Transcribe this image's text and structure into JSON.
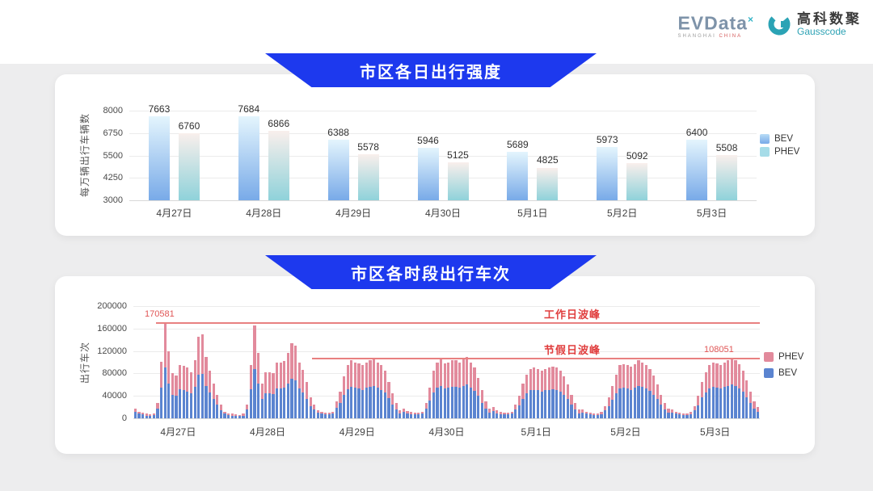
{
  "logo": {
    "evdata_text": "EVData",
    "evdata_sup": "×",
    "evdata_sub_left": "SHANGHAI",
    "evdata_sub_right": "CHINA",
    "gausscode_cn": "高科数聚",
    "gausscode_en": "Gausscode",
    "teal": "#2ba3b5"
  },
  "banners": [
    {
      "title": "市区各日出行强度"
    },
    {
      "title": "市区各时段出行车次"
    }
  ],
  "chart_data": [
    {
      "type": "bar",
      "title": "市区各日出行强度",
      "ylabel": "每万辆出行车辆数",
      "ylim": [
        3000,
        8000
      ],
      "yticks": [
        3000,
        4250,
        5500,
        6750,
        8000
      ],
      "grid": true,
      "legend_position": "right",
      "categories": [
        "4月27日",
        "4月28日",
        "4月29日",
        "4月30日",
        "5月1日",
        "5月2日",
        "5月3日"
      ],
      "series": [
        {
          "name": "BEV",
          "values": [
            7663,
            7684,
            6388,
            5946,
            5689,
            5973,
            6400
          ],
          "color_top": "#e4f5fd",
          "color_bottom": "#78aae8"
        },
        {
          "name": "PHEV",
          "values": [
            6760,
            6866,
            5578,
            5125,
            4825,
            5092,
            5508
          ],
          "color_top": "#f9efec",
          "color_bottom": "#8fd2da"
        }
      ],
      "legend": [
        {
          "label": "BEV",
          "swatch": "#85b8ec"
        },
        {
          "label": "PHEV",
          "swatch": "#a6dce8"
        }
      ]
    },
    {
      "type": "stacked-bar",
      "title": "市区各时段出行车次",
      "ylabel": "出行车次",
      "ylim": [
        0,
        200000
      ],
      "yticks": [
        0,
        40000,
        80000,
        120000,
        160000,
        200000
      ],
      "grid": true,
      "legend_position": "right",
      "bev_color": "#5b84d0",
      "phev_color": "#e28a9c",
      "annotations": {
        "weekday_peak": {
          "label": "工作日波峰",
          "value": 170581,
          "value_label": "170581"
        },
        "holiday_peak": {
          "label": "节假日波峰",
          "value": 108051,
          "value_label": "108051"
        }
      },
      "legend": [
        {
          "label": "PHEV",
          "swatch": "#e28a9c"
        },
        {
          "label": "BEV",
          "swatch": "#5b84d0"
        }
      ],
      "days": [
        {
          "date": "4月27日",
          "bev": [
            11000,
            8000,
            7000,
            5000,
            5000,
            6000,
            17000,
            55000,
            91000,
            62000,
            42000,
            41000,
            52000,
            51000,
            48000,
            44000,
            56000,
            78000,
            79000,
            58000,
            46000,
            34000,
            24000,
            15000
          ],
          "phev": [
            6000,
            4000,
            3000,
            3000,
            2000,
            3000,
            10000,
            46000,
            79581,
            57000,
            38000,
            35000,
            43000,
            43000,
            42000,
            38000,
            48000,
            67000,
            70000,
            51000,
            39000,
            28000,
            18000,
            10000
          ]
        },
        {
          "date": "4月28日",
          "bev": [
            8000,
            6000,
            5000,
            5000,
            4000,
            5000,
            16000,
            52000,
            88000,
            62000,
            34000,
            44000,
            44000,
            43000,
            53000,
            53000,
            54000,
            62000,
            71000,
            68000,
            53000,
            46000,
            35000,
            21000
          ],
          "phev": [
            4000,
            3000,
            3000,
            2000,
            2000,
            3000,
            9000,
            43000,
            77000,
            55000,
            28000,
            38000,
            38000,
            37000,
            47000,
            47000,
            48000,
            55000,
            63000,
            61000,
            47000,
            41000,
            30000,
            17000
          ]
        },
        {
          "date": "4月29日",
          "bev": [
            16000,
            10000,
            8000,
            7000,
            7000,
            8000,
            19000,
            28000,
            42000,
            52000,
            56000,
            54000,
            53000,
            51000,
            54000,
            56000,
            58000,
            54000,
            51000,
            46000,
            36000,
            25000,
            16000,
            9000
          ],
          "phev": [
            9000,
            5000,
            4000,
            3000,
            3000,
            4000,
            11000,
            20000,
            33000,
            43000,
            47000,
            46000,
            45000,
            44000,
            46000,
            47000,
            49000,
            46000,
            44000,
            39000,
            29000,
            20000,
            12000,
            6000
          ]
        },
        {
          "date": "4月30日",
          "bev": [
            12000,
            9000,
            7000,
            7000,
            7000,
            8000,
            18000,
            31000,
            46000,
            54000,
            57000,
            53000,
            54000,
            56000,
            56000,
            54000,
            57000,
            60000,
            54000,
            49000,
            40000,
            28000,
            17000,
            10000
          ],
          "phev": [
            6000,
            4000,
            4000,
            3000,
            3000,
            4000,
            10000,
            24000,
            39000,
            46000,
            48000,
            45000,
            46000,
            47000,
            47000,
            46000,
            48000,
            50000,
            46000,
            41000,
            32000,
            22000,
            13000,
            8000
          ]
        },
        {
          "date": "5月1日",
          "bev": [
            13000,
            9000,
            7000,
            7000,
            7000,
            8000,
            16000,
            23000,
            35000,
            44000,
            50000,
            51000,
            50000,
            48000,
            50000,
            51000,
            52000,
            51000,
            48000,
            42000,
            34000,
            24000,
            16000,
            9000
          ],
          "phev": [
            7000,
            5000,
            4000,
            3000,
            3000,
            4000,
            9000,
            17000,
            27000,
            34000,
            38000,
            39000,
            38000,
            37000,
            38000,
            39000,
            40000,
            39000,
            37000,
            33000,
            26000,
            18000,
            12000,
            7000
          ]
        },
        {
          "date": "5月2日",
          "bev": [
            10000,
            8000,
            7000,
            6000,
            6000,
            7000,
            14000,
            22000,
            33000,
            44000,
            53000,
            54000,
            53000,
            51000,
            54000,
            57000,
            56000,
            53000,
            49000,
            42000,
            34000,
            24000,
            16000,
            10000
          ],
          "phev": [
            6000,
            4000,
            3000,
            3000,
            3000,
            4000,
            8000,
            16000,
            25000,
            34000,
            42000,
            43000,
            42000,
            41000,
            43000,
            46000,
            44000,
            42000,
            39000,
            34000,
            26000,
            18000,
            12000,
            7000
          ]
        },
        {
          "date": "5月3日",
          "bev": [
            10000,
            8000,
            7000,
            6000,
            6000,
            7000,
            14000,
            23000,
            37000,
            46000,
            53000,
            56000,
            55000,
            53000,
            56000,
            58000,
            60000,
            58000,
            53000,
            47000,
            38000,
            27000,
            17000,
            11000
          ],
          "phev": [
            6000,
            4000,
            3000,
            3000,
            3000,
            4000,
            8000,
            17000,
            28000,
            36000,
            42000,
            44000,
            43000,
            42000,
            44000,
            46000,
            48051,
            46000,
            43000,
            38000,
            30000,
            21000,
            13000,
            9000
          ]
        }
      ]
    }
  ]
}
